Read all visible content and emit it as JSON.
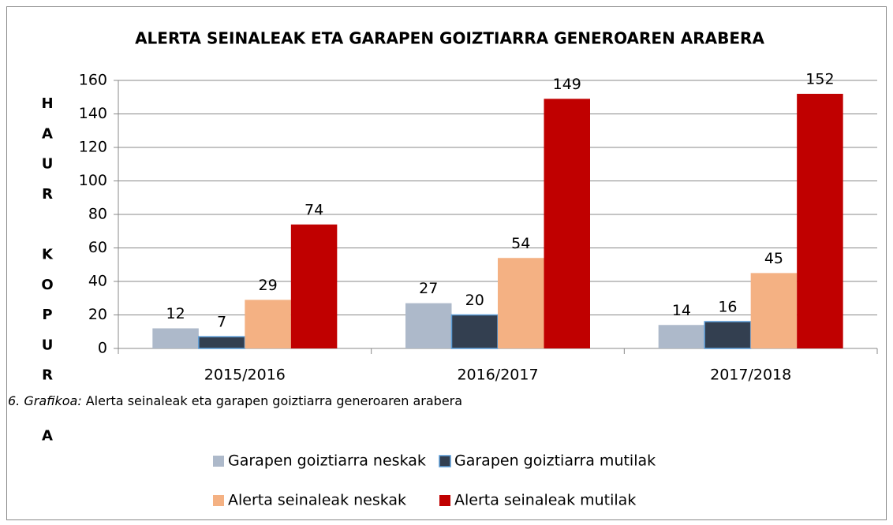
{
  "chart_data": {
    "type": "bar",
    "title": "ALERTA SEINALEAK ETA GARAPEN GOIZTIARRA GENEROAREN ARABERA",
    "y_label": "HAUR KOPURUA",
    "caption_label": "6. Grafikoa:",
    "caption": "Alerta seinaleak eta garapen goiztiarra generoaren arabera",
    "categories": [
      "2015/2016",
      "2016/2017",
      "2017/2018"
    ],
    "series": [
      {
        "name": "Garapen goiztiarra neskak",
        "color": "#adb9ca",
        "values": [
          12,
          27,
          14
        ]
      },
      {
        "name": "Garapen goiztiarra mutilak",
        "color": "#333f50",
        "values": [
          7,
          20,
          16
        ]
      },
      {
        "name": "Alerta seinaleak neskak",
        "color": "#f4b183",
        "values": [
          29,
          54,
          45
        ]
      },
      {
        "name": "Alerta seinaleak mutilak",
        "color": "#c00000",
        "values": [
          74,
          149,
          152
        ]
      }
    ],
    "ylim": [
      0,
      160
    ],
    "yticks": [
      0,
      20,
      40,
      60,
      80,
      100,
      120,
      140,
      160
    ],
    "grid": true
  }
}
